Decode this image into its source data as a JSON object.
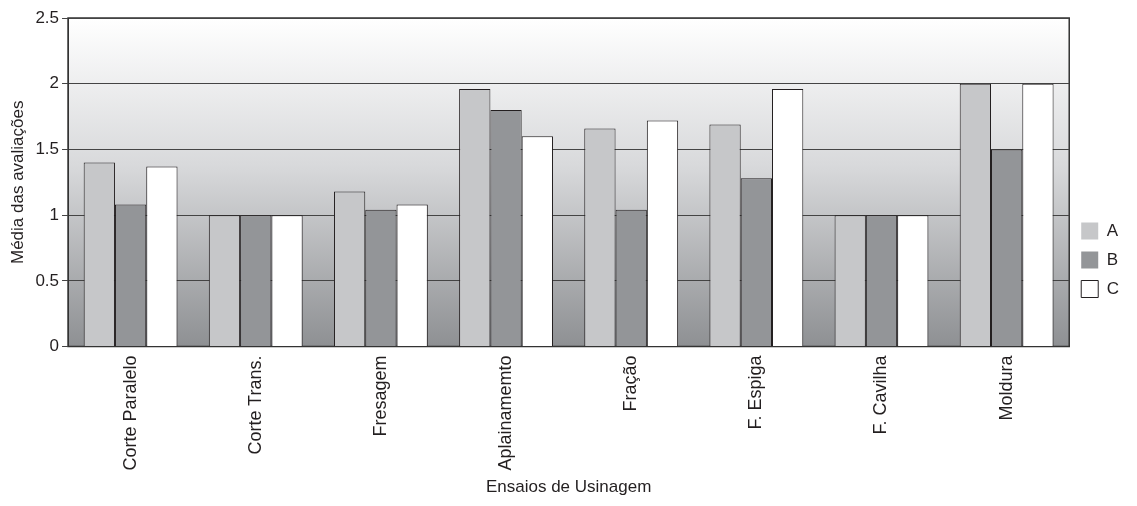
{
  "chart_data": {
    "type": "bar",
    "xlabel": "Ensaios de Usinagem",
    "ylabel": "Média das avaliações",
    "categories": [
      "Corte Paralelo",
      "Corte Trans.",
      "Fresagem",
      "Aplainamemto",
      "Fração",
      "F. Espiga",
      "F. Cavilha",
      "Moldura"
    ],
    "series": [
      {
        "name": "A",
        "color": "#c6c7c9",
        "values": [
          1.4,
          1,
          1.18,
          1.96,
          1.66,
          1.69,
          1,
          2
        ]
      },
      {
        "name": "B",
        "color": "#939598",
        "values": [
          1.08,
          1,
          1.04,
          1.8,
          1.04,
          1.28,
          1,
          1.5
        ]
      },
      {
        "name": "C",
        "color": "#ffffff",
        "values": [
          1.37,
          1,
          1.08,
          1.6,
          1.72,
          1.96,
          1,
          2
        ]
      }
    ],
    "ylim": [
      0,
      2.5
    ],
    "yticks": [
      0,
      0.5,
      1,
      1.5,
      2,
      2.5
    ],
    "grid": "y",
    "legend": "right"
  }
}
